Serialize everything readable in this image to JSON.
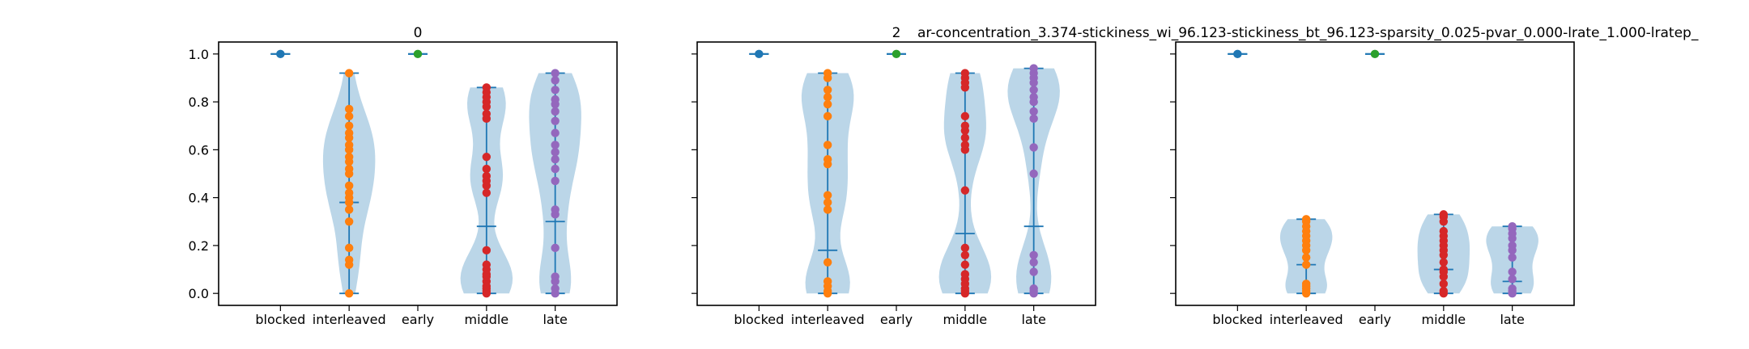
{
  "figure": {
    "suptitle": "ar-concentration_3.374-stickiness_wi_96.123-stickiness_bt_96.123-sparsity_0.025-pvar_0.000-lrate_1.000-lratep_"
  },
  "colors": {
    "blocked": "#1f77b4",
    "interleaved": "#ff7f0e",
    "early": "#2ca02c",
    "middle": "#d62728",
    "late": "#9467bd",
    "violin_fill": "#1f77b4",
    "violin_lines": "#1f77b4"
  },
  "chart_data": [
    {
      "type": "violin",
      "title": "0",
      "categories": [
        "blocked",
        "interleaved",
        "early",
        "middle",
        "late"
      ],
      "ylim": [
        -0.05,
        1.05
      ],
      "yticks": [
        "0.0",
        "0.2",
        "0.4",
        "0.6",
        "0.8",
        "1.0"
      ],
      "series": [
        {
          "category": "blocked",
          "points": [
            1.0
          ],
          "min": 1.0,
          "max": 1.0,
          "mean": 1.0
        },
        {
          "category": "interleaved",
          "points": [
            0.0,
            0.12,
            0.14,
            0.19,
            0.3,
            0.35,
            0.38,
            0.4,
            0.42,
            0.45,
            0.5,
            0.52,
            0.55,
            0.57,
            0.6,
            0.62,
            0.65,
            0.67,
            0.7,
            0.74,
            0.77,
            0.92
          ],
          "min": 0.0,
          "max": 0.92,
          "mean": 0.38
        },
        {
          "category": "early",
          "points": [
            1.0
          ],
          "min": 1.0,
          "max": 1.0,
          "mean": 1.0
        },
        {
          "category": "middle",
          "points": [
            0.0,
            0.01,
            0.02,
            0.03,
            0.05,
            0.07,
            0.08,
            0.1,
            0.12,
            0.18,
            0.42,
            0.45,
            0.47,
            0.49,
            0.52,
            0.57,
            0.73,
            0.75,
            0.78,
            0.8,
            0.82,
            0.84,
            0.86
          ],
          "min": 0.0,
          "max": 0.86,
          "mean": 0.28
        },
        {
          "category": "late",
          "points": [
            0.0,
            0.02,
            0.05,
            0.07,
            0.19,
            0.33,
            0.35,
            0.47,
            0.52,
            0.56,
            0.59,
            0.62,
            0.67,
            0.72,
            0.76,
            0.79,
            0.81,
            0.85,
            0.89,
            0.92
          ],
          "min": 0.0,
          "max": 0.92,
          "mean": 0.3
        }
      ]
    },
    {
      "type": "violin",
      "title": "2",
      "categories": [
        "blocked",
        "interleaved",
        "early",
        "middle",
        "late"
      ],
      "ylim": [
        -0.05,
        1.05
      ],
      "yticks": [
        "0.0",
        "0.2",
        "0.4",
        "0.6",
        "0.8",
        "1.0"
      ],
      "series": [
        {
          "category": "blocked",
          "points": [
            1.0
          ],
          "min": 1.0,
          "max": 1.0,
          "mean": 1.0
        },
        {
          "category": "interleaved",
          "points": [
            0.0,
            0.01,
            0.03,
            0.05,
            0.13,
            0.35,
            0.38,
            0.41,
            0.54,
            0.56,
            0.62,
            0.74,
            0.79,
            0.82,
            0.85,
            0.9,
            0.92
          ],
          "min": 0.0,
          "max": 0.92,
          "mean": 0.18
        },
        {
          "category": "early",
          "points": [
            1.0
          ],
          "min": 1.0,
          "max": 1.0,
          "mean": 1.0
        },
        {
          "category": "middle",
          "points": [
            0.0,
            0.01,
            0.02,
            0.04,
            0.06,
            0.08,
            0.12,
            0.16,
            0.19,
            0.43,
            0.6,
            0.62,
            0.65,
            0.68,
            0.7,
            0.74,
            0.86,
            0.88,
            0.9,
            0.92
          ],
          "min": 0.0,
          "max": 0.92,
          "mean": 0.25
        },
        {
          "category": "late",
          "points": [
            0.0,
            0.01,
            0.02,
            0.09,
            0.13,
            0.16,
            0.5,
            0.61,
            0.73,
            0.76,
            0.8,
            0.82,
            0.85,
            0.88,
            0.9,
            0.92,
            0.94
          ],
          "min": 0.0,
          "max": 0.94,
          "mean": 0.28
        }
      ]
    },
    {
      "type": "violin",
      "title": "",
      "categories": [
        "blocked",
        "interleaved",
        "early",
        "middle",
        "late"
      ],
      "ylim": [
        -0.05,
        1.05
      ],
      "yticks": [
        "0.0",
        "0.2",
        "0.4",
        "0.6",
        "0.8",
        "1.0"
      ],
      "series": [
        {
          "category": "blocked",
          "points": [
            1.0
          ],
          "min": 1.0,
          "max": 1.0,
          "mean": 1.0
        },
        {
          "category": "interleaved",
          "points": [
            0.0,
            0.01,
            0.02,
            0.03,
            0.04,
            0.12,
            0.15,
            0.18,
            0.2,
            0.22,
            0.24,
            0.26,
            0.28,
            0.3,
            0.31
          ],
          "min": 0.0,
          "max": 0.31,
          "mean": 0.12
        },
        {
          "category": "early",
          "points": [
            1.0
          ],
          "min": 1.0,
          "max": 1.0,
          "mean": 1.0
        },
        {
          "category": "middle",
          "points": [
            0.0,
            0.01,
            0.04,
            0.07,
            0.09,
            0.1,
            0.13,
            0.16,
            0.18,
            0.2,
            0.22,
            0.24,
            0.26,
            0.3,
            0.32,
            0.33
          ],
          "min": 0.0,
          "max": 0.33,
          "mean": 0.1
        },
        {
          "category": "late",
          "points": [
            0.0,
            0.01,
            0.02,
            0.06,
            0.09,
            0.15,
            0.18,
            0.2,
            0.23,
            0.25,
            0.27,
            0.28
          ],
          "min": 0.0,
          "max": 0.28,
          "mean": 0.05
        }
      ]
    }
  ]
}
